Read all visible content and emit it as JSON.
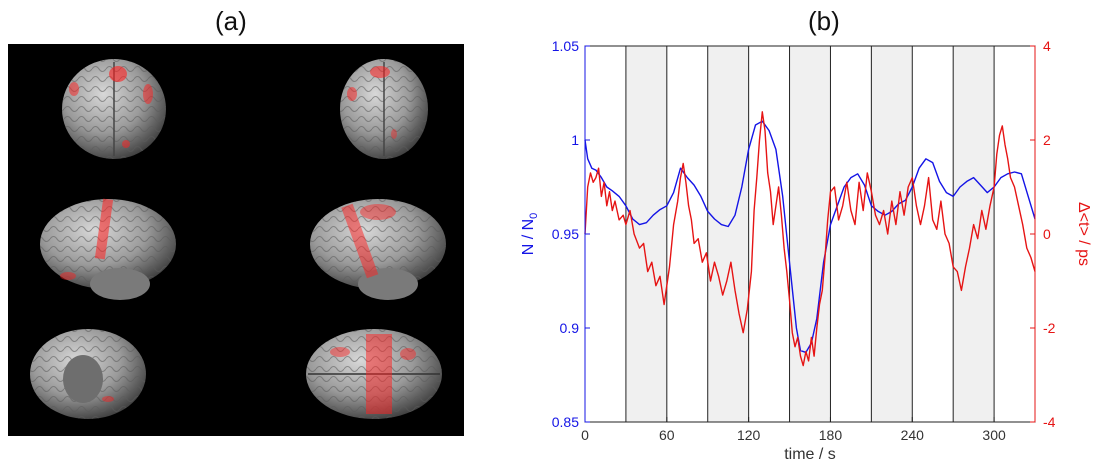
{
  "panels": {
    "a_label": "(a)",
    "b_label": "(b)"
  },
  "colors": {
    "blue": "#1414e6",
    "red": "#e61414",
    "stim_fill": "#f0f0f0",
    "background": "#000000"
  },
  "brain_images": [
    {
      "view": "anterior"
    },
    {
      "view": "posterior"
    },
    {
      "view": "left-lateral"
    },
    {
      "view": "right-lateral"
    },
    {
      "view": "inferior"
    },
    {
      "view": "superior"
    }
  ],
  "chart_data": {
    "type": "line",
    "title": "(b)",
    "xlabel": "time  / s",
    "ylabel_left": "N / N",
    "ylabel_left_sub": "0",
    "ylabel_right": "Δ<t>  / ps",
    "xlim": [
      0,
      330
    ],
    "ylim_left": [
      0.85,
      1.05
    ],
    "ylim_right": [
      -4,
      4
    ],
    "x_ticks": [
      0,
      60,
      120,
      180,
      240,
      300
    ],
    "x_tick_labels": [
      "0",
      "60",
      "120",
      "180",
      "240",
      "300"
    ],
    "y_left_ticks": [
      0.85,
      0.9,
      0.95,
      1,
      1.05
    ],
    "y_left_tick_labels": [
      "0.85",
      "0.9",
      "0.95",
      "1",
      "1.05"
    ],
    "y_right_ticks": [
      -4,
      -2,
      0,
      2,
      4
    ],
    "y_right_tick_labels": [
      "-4",
      "-2",
      "0",
      "2",
      "4"
    ],
    "stimulus_blocks": [
      [
        30,
        60
      ],
      [
        90,
        120
      ],
      [
        150,
        180
      ],
      [
        210,
        240
      ],
      [
        270,
        300
      ]
    ],
    "block_boundaries": [
      30,
      60,
      90,
      120,
      150,
      180,
      210,
      240,
      270,
      300
    ],
    "grid": false,
    "series": [
      {
        "axis": "left",
        "color": "#1414e6",
        "x": [
          0,
          2,
          5,
          8,
          12,
          16,
          20,
          25,
          30,
          35,
          40,
          45,
          50,
          55,
          60,
          65,
          70,
          75,
          80,
          85,
          90,
          95,
          100,
          105,
          110,
          115,
          120,
          125,
          130,
          135,
          140,
          145,
          150,
          155,
          158,
          162,
          166,
          170,
          175,
          180,
          185,
          190,
          195,
          200,
          205,
          210,
          215,
          220,
          225,
          230,
          235,
          240,
          245,
          250,
          255,
          260,
          265,
          270,
          275,
          280,
          285,
          290,
          295,
          300,
          305,
          310,
          315,
          320,
          325,
          330
        ],
        "y": [
          1.0,
          0.99,
          0.985,
          0.984,
          0.98,
          0.975,
          0.973,
          0.97,
          0.965,
          0.958,
          0.955,
          0.956,
          0.96,
          0.963,
          0.965,
          0.972,
          0.985,
          0.98,
          0.976,
          0.97,
          0.962,
          0.958,
          0.955,
          0.954,
          0.96,
          0.975,
          0.995,
          1.008,
          1.01,
          1.005,
          0.995,
          0.97,
          0.935,
          0.9,
          0.888,
          0.887,
          0.892,
          0.905,
          0.935,
          0.955,
          0.965,
          0.975,
          0.98,
          0.982,
          0.976,
          0.965,
          0.962,
          0.96,
          0.962,
          0.966,
          0.968,
          0.975,
          0.985,
          0.99,
          0.988,
          0.978,
          0.972,
          0.97,
          0.975,
          0.978,
          0.98,
          0.976,
          0.972,
          0.975,
          0.98,
          0.982,
          0.983,
          0.982,
          0.97,
          0.958
        ]
      },
      {
        "axis": "right",
        "color": "#e61414",
        "x": [
          0,
          2,
          4,
          6,
          8,
          10,
          12,
          14,
          16,
          18,
          20,
          22,
          25,
          28,
          30,
          33,
          36,
          40,
          43,
          46,
          49,
          52,
          55,
          58,
          62,
          65,
          68,
          70,
          72,
          74,
          76,
          78,
          80,
          83,
          86,
          89,
          92,
          95,
          98,
          101,
          104,
          107,
          110,
          113,
          116,
          119,
          122,
          124,
          126,
          128,
          130,
          132,
          134,
          136,
          138,
          140,
          142,
          144,
          146,
          148,
          150,
          152,
          154,
          156,
          158,
          160,
          162,
          164,
          166,
          168,
          170,
          172,
          174,
          176,
          178,
          180,
          183,
          186,
          189,
          192,
          195,
          198,
          201,
          204,
          207,
          210,
          213,
          216,
          219,
          222,
          225,
          228,
          231,
          234,
          237,
          240,
          243,
          246,
          249,
          252,
          255,
          258,
          261,
          264,
          267,
          270,
          273,
          276,
          279,
          282,
          285,
          288,
          291,
          294,
          297,
          300,
          302,
          304,
          306,
          308,
          310,
          312,
          315,
          318,
          321,
          324,
          327,
          330
        ],
        "y": [
          0,
          1.0,
          1.3,
          1.1,
          1.2,
          1.4,
          0.8,
          1.1,
          0.6,
          0.9,
          0.5,
          0.7,
          0.3,
          0.4,
          0.2,
          0.5,
          0.0,
          -0.3,
          -0.2,
          -0.8,
          -0.6,
          -1.1,
          -0.9,
          -1.5,
          -0.7,
          0.2,
          0.7,
          1.2,
          1.5,
          1.1,
          0.6,
          0.3,
          -0.2,
          -0.1,
          -0.6,
          -0.4,
          -1.0,
          -0.6,
          -0.9,
          -1.3,
          -1.0,
          -0.6,
          -1.2,
          -1.7,
          -2.1,
          -1.6,
          -0.8,
          0.5,
          1.2,
          2.0,
          2.6,
          2.2,
          1.3,
          0.9,
          0.2,
          0.6,
          1.0,
          0.4,
          -0.3,
          -0.8,
          -1.4,
          -2.1,
          -2.4,
          -2.2,
          -2.6,
          -2.8,
          -2.5,
          -2.7,
          -2.2,
          -2.6,
          -2.0,
          -1.5,
          -1.2,
          -0.5,
          0.3,
          0.9,
          1.0,
          0.3,
          0.6,
          1.1,
          0.5,
          0.2,
          1.1,
          0.5,
          1.3,
          0.9,
          0.4,
          0.2,
          0.5,
          0.0,
          0.7,
          0.2,
          0.9,
          0.4,
          1.0,
          1.2,
          0.6,
          0.2,
          0.6,
          1.2,
          0.3,
          0.1,
          0.7,
          0.0,
          -0.2,
          -0.7,
          -0.8,
          -1.2,
          -0.7,
          -0.3,
          0.2,
          -0.1,
          0.5,
          0.1,
          0.6,
          1.0,
          1.7,
          2.1,
          2.3,
          1.9,
          1.6,
          1.2,
          1.0,
          0.6,
          0.2,
          -0.3,
          -0.5,
          -0.8
        ]
      }
    ]
  }
}
